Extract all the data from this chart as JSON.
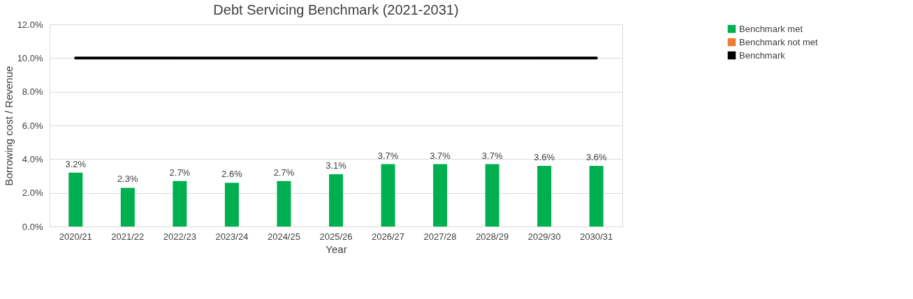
{
  "chart_data": {
    "type": "bar",
    "title": "Debt Servicing Benchmark (2021-2031)",
    "xlabel": "Year",
    "ylabel": "Borrowing cost / Revenue",
    "categories": [
      "2020/21",
      "2021/22",
      "2022/23",
      "2023/24",
      "2024/25",
      "2025/26",
      "2026/27",
      "2027/28",
      "2028/29",
      "2029/30",
      "2030/31"
    ],
    "series": [
      {
        "name": "Benchmark met",
        "color": "#00b050",
        "values": [
          3.2,
          2.3,
          2.7,
          2.6,
          2.7,
          3.1,
          3.7,
          3.7,
          3.7,
          3.6,
          3.6
        ],
        "value_labels": [
          "3.2%",
          "2.3%",
          "2.7%",
          "2.6%",
          "2.7%",
          "3.1%",
          "3.7%",
          "3.7%",
          "3.7%",
          "3.6%",
          "3.6%"
        ]
      },
      {
        "name": "Benchmark not met",
        "color": "#ed7d31",
        "values": [
          null,
          null,
          null,
          null,
          null,
          null,
          null,
          null,
          null,
          null,
          null
        ]
      },
      {
        "name": "Benchmark",
        "type": "line",
        "color": "#000000",
        "values": [
          10,
          10,
          10,
          10,
          10,
          10,
          10,
          10,
          10,
          10,
          10
        ]
      }
    ],
    "ylim": [
      0,
      12
    ],
    "yticks": [
      {
        "value": 0,
        "label": "0.0%"
      },
      {
        "value": 2,
        "label": "2.0%"
      },
      {
        "value": 4,
        "label": "4.0%"
      },
      {
        "value": 6,
        "label": "6.0%"
      },
      {
        "value": 8,
        "label": "8.0%"
      },
      {
        "value": 10,
        "label": "10.0%"
      },
      {
        "value": 12,
        "label": "12.0%"
      }
    ],
    "grid": "y",
    "legend": "right"
  }
}
